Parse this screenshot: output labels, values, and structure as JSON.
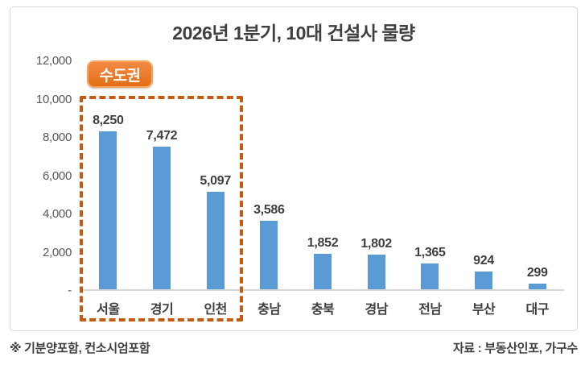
{
  "chart": {
    "title": "2026년 1분기, 10대 건설사 물량",
    "badge_label": "수도권",
    "colors": {
      "bar": "#5b9bd5",
      "badge": "#ed7d31",
      "badge_border": "#f5a661",
      "dashed_box": "#c55a11",
      "baseline": "#d6d6d6",
      "axis_text": "#595959",
      "dark_text": "#3f3f3f",
      "card_border": "#d9d9d9"
    }
  },
  "chart_data": {
    "type": "bar",
    "title": "2026년 1분기, 10대 건설사 물량",
    "categories": [
      "서울",
      "경기",
      "인천",
      "충남",
      "충북",
      "경남",
      "전남",
      "부산",
      "대구"
    ],
    "values": [
      8250,
      7472,
      5097,
      3586,
      1852,
      1802,
      1365,
      924,
      299
    ],
    "value_labels": [
      "8,250",
      "7,472",
      "5,097",
      "3,586",
      "1,852",
      "1,802",
      "1,365",
      "924",
      "299"
    ],
    "ylim": [
      0,
      12000
    ],
    "yticks": [
      {
        "label": "12,000",
        "value": 12000
      },
      {
        "label": "10,000",
        "value": 10000
      },
      {
        "label": "8,000",
        "value": 8000
      },
      {
        "label": "6,000",
        "value": 6000
      },
      {
        "label": "4,000",
        "value": 4000
      },
      {
        "label": "2,000",
        "value": 2000
      },
      {
        "label": "-",
        "value": 0
      }
    ],
    "xlabel": "",
    "ylabel": "",
    "grid": false,
    "legend": false,
    "annotation": {
      "label": "수도권",
      "applies_to": [
        "서울",
        "경기",
        "인천"
      ]
    }
  },
  "footer": {
    "note_left": "※ 기분양포함, 컨소시엄포함",
    "source_right": "자료 : 부동산인포, 가구수"
  }
}
